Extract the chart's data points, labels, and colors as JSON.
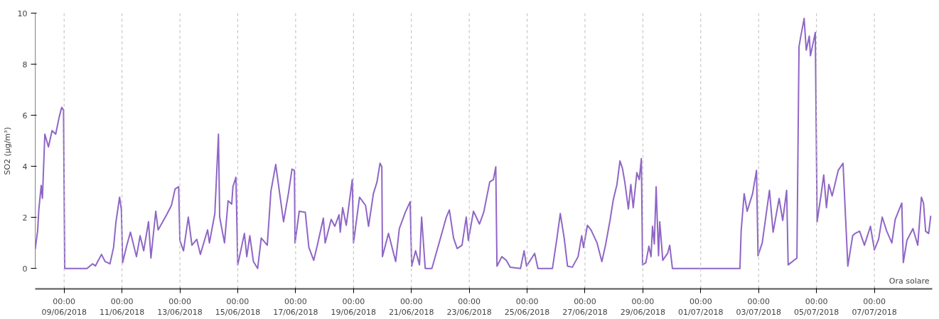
{
  "chart_data": {
    "type": "line",
    "ylabel": "SO2 (µg/m³)",
    "xlabel": "Ora solare",
    "xlim": [
      "2018-06-08",
      "2018-07-09"
    ],
    "ylim": [
      0,
      10
    ],
    "yticks": [
      0,
      2,
      4,
      6,
      8,
      10
    ],
    "xticks": [
      {
        "value": "2018-06-09",
        "label": "00:00\n09/06/2018"
      },
      {
        "value": "2018-06-11",
        "label": "00:00\n11/06/2018"
      },
      {
        "value": "2018-06-13",
        "label": "00:00\n13/06/2018"
      },
      {
        "value": "2018-06-15",
        "label": "00:00\n15/06/2018"
      },
      {
        "value": "2018-06-17",
        "label": "00:00\n17/06/2018"
      },
      {
        "value": "2018-06-19",
        "label": "00:00\n19/06/2018"
      },
      {
        "value": "2018-06-21",
        "label": "00:00\n21/06/2018"
      },
      {
        "value": "2018-06-23",
        "label": "00:00\n23/06/2018"
      },
      {
        "value": "2018-06-25",
        "label": "00:00\n25/06/2018"
      },
      {
        "value": "2018-06-27",
        "label": "00:00\n27/06/2018"
      },
      {
        "value": "2018-06-29",
        "label": "00:00\n29/06/2018"
      },
      {
        "value": "2018-07-01",
        "label": "00:00\n01/07/2018"
      },
      {
        "value": "2018-07-03",
        "label": "00:00\n03/07/2018"
      },
      {
        "value": "2018-07-05",
        "label": "00:00\n05/07/2018"
      },
      {
        "value": "2018-07-07",
        "label": "00:00\n07/07/2018"
      }
    ],
    "grid": "x",
    "marker": "none",
    "line_style": "solid",
    "series": [
      {
        "color": "#8f66c6",
        "x": [
          "2018-06-08T00:00",
          "2018-06-08T02:00",
          "2018-06-08T03:00",
          "2018-06-08T05:00",
          "2018-06-08T06:00",
          "2018-06-08T08:00",
          "2018-06-08T11:00",
          "2018-06-08T14:00",
          "2018-06-08T17:00",
          "2018-06-08T20:00",
          "2018-06-08T22:00",
          "2018-06-08T23:30",
          "2018-06-09T00:30",
          "2018-06-09T19:00",
          "2018-06-09T23:30",
          "2018-06-10T02:00",
          "2018-06-10T07:00",
          "2018-06-10T10:00",
          "2018-06-10T14:00",
          "2018-06-10T17:00",
          "2018-06-10T19:00",
          "2018-06-10T22:00",
          "2018-06-10T23:30",
          "2018-06-11T00:30",
          "2018-06-11T04:00",
          "2018-06-11T07:00",
          "2018-06-11T12:00",
          "2018-06-11T15:00",
          "2018-06-11T18:00",
          "2018-06-11T22:00",
          "2018-06-12T00:00",
          "2018-06-12T04:00",
          "2018-06-12T06:00",
          "2018-06-12T13:00",
          "2018-06-12T17:00",
          "2018-06-12T20:00",
          "2018-06-12T23:00",
          "2018-06-13T00:00",
          "2018-06-13T03:00",
          "2018-06-13T07:00",
          "2018-06-13T10:00",
          "2018-06-13T14:00",
          "2018-06-13T17:00",
          "2018-06-13T23:00",
          "2018-06-14T00:30",
          "2018-06-14T05:00",
          "2018-06-14T08:00",
          "2018-06-14T09:00",
          "2018-06-14T13:00",
          "2018-06-14T16:00",
          "2018-06-14T19:00",
          "2018-06-14T20:00",
          "2018-06-14T22:30",
          "2018-06-15T00:00",
          "2018-06-15T05:30",
          "2018-06-15T07:30",
          "2018-06-15T10:00",
          "2018-06-15T13:00",
          "2018-06-15T16:30",
          "2018-06-15T19:30",
          "2018-06-16T00:30",
          "2018-06-16T03:30",
          "2018-06-16T07:30",
          "2018-06-16T10:00",
          "2018-06-16T14:00",
          "2018-06-16T18:00",
          "2018-06-16T21:00",
          "2018-06-16T23:00",
          "2018-06-16T23:30",
          "2018-06-17T03:00",
          "2018-06-17T08:00",
          "2018-06-17T11:00",
          "2018-06-17T15:00",
          "2018-06-17T18:00",
          "2018-06-17T23:00",
          "2018-06-18T00:30",
          "2018-06-18T05:30",
          "2018-06-18T08:30",
          "2018-06-18T12:00",
          "2018-06-18T13:00",
          "2018-06-18T15:00",
          "2018-06-18T18:00",
          "2018-06-18T23:00",
          "2018-06-19T00:00",
          "2018-06-19T05:00",
          "2018-06-19T10:00",
          "2018-06-19T12:30",
          "2018-06-19T16:30",
          "2018-06-19T19:30",
          "2018-06-19T22:00",
          "2018-06-19T23:30",
          "2018-06-20T00:00",
          "2018-06-20T05:00",
          "2018-06-20T11:00",
          "2018-06-20T14:00",
          "2018-06-20T19:00",
          "2018-06-20T23:00",
          "2018-06-21T00:15",
          "2018-06-21T03:30",
          "2018-06-21T06:45",
          "2018-06-21T08:30",
          "2018-06-21T11:30",
          "2018-06-21T17:00",
          "2018-06-21T23:00",
          "2018-06-22T05:00",
          "2018-06-22T07:30",
          "2018-06-22T11:00",
          "2018-06-22T14:00",
          "2018-06-22T18:00",
          "2018-06-22T21:30",
          "2018-06-22T23:15",
          "2018-06-23T03:30",
          "2018-06-23T08:30",
          "2018-06-23T12:00",
          "2018-06-23T17:00",
          "2018-06-23T20:00",
          "2018-06-23T22:00",
          "2018-06-23T23:00",
          "2018-06-24T03:00",
          "2018-06-24T06:45",
          "2018-06-24T10:00",
          "2018-06-24T18:30",
          "2018-06-24T21:30",
          "2018-06-24T23:30",
          "2018-06-25T06:15",
          "2018-06-25T09:00",
          "2018-06-25T21:00",
          "2018-06-26T00:45",
          "2018-06-26T03:30",
          "2018-06-26T06:45",
          "2018-06-26T09:30",
          "2018-06-26T13:30",
          "2018-06-26T18:15",
          "2018-06-26T21:15",
          "2018-06-26T22:45",
          "2018-06-27T02:00",
          "2018-06-27T05:00",
          "2018-06-27T10:00",
          "2018-06-27T14:00",
          "2018-06-27T17:00",
          "2018-06-27T20:45",
          "2018-06-27T23:30",
          "2018-06-28T02:30",
          "2018-06-28T05:00",
          "2018-06-28T07:00",
          "2018-06-28T09:00",
          "2018-06-28T12:00",
          "2018-06-28T14:00",
          "2018-06-28T16:00",
          "2018-06-28T19:00",
          "2018-06-28T21:00",
          "2018-06-28T22:45",
          "2018-06-28T23:45",
          "2018-06-29T02:30",
          "2018-06-29T05:00",
          "2018-06-29T06:45",
          "2018-06-29T08:00",
          "2018-06-29T09:30",
          "2018-06-29T11:00",
          "2018-06-29T13:00",
          "2018-06-29T14:00",
          "2018-06-29T16:30",
          "2018-06-29T20:30",
          "2018-06-29T22:15",
          "2018-06-30T00:30",
          "2018-07-02T08:30",
          "2018-07-02T09:30",
          "2018-07-02T12:00",
          "2018-07-02T14:30",
          "2018-07-02T19:00",
          "2018-07-02T22:15",
          "2018-07-02T23:30",
          "2018-07-03T03:00",
          "2018-07-03T09:00",
          "2018-07-03T12:00",
          "2018-07-03T17:00",
          "2018-07-03T20:00",
          "2018-07-03T23:15",
          "2018-07-04T00:30",
          "2018-07-04T07:45",
          "2018-07-04T09:30",
          "2018-07-04T11:00",
          "2018-07-04T13:45",
          "2018-07-04T15:30",
          "2018-07-04T18:00",
          "2018-07-04T19:00",
          "2018-07-04T23:00",
          "2018-07-05T00:30",
          "2018-07-05T03:30",
          "2018-07-05T06:00",
          "2018-07-05T08:15",
          "2018-07-05T10:15",
          "2018-07-05T13:00",
          "2018-07-05T18:00",
          "2018-07-05T22:00",
          "2018-07-06T02:00",
          "2018-07-06T06:00",
          "2018-07-06T08:00",
          "2018-07-06T11:45",
          "2018-07-06T15:45",
          "2018-07-06T20:45",
          "2018-07-07T00:00",
          "2018-07-07T03:30",
          "2018-07-07T06:30",
          "2018-07-07T10:15",
          "2018-07-07T14:30",
          "2018-07-07T17:15",
          "2018-07-07T22:45",
          "2018-07-08T00:00",
          "2018-07-08T03:00",
          "2018-07-08T08:00",
          "2018-07-08T12:00",
          "2018-07-08T15:00",
          "2018-07-08T16:45",
          "2018-07-08T18:30",
          "2018-07-08T21:00",
          "2018-07-08T22:45"
        ],
        "values": [
          0.75,
          1.46,
          2.29,
          3.25,
          2.75,
          5.26,
          4.76,
          5.4,
          5.26,
          5.95,
          6.31,
          6.2,
          0,
          0,
          0.18,
          0.1,
          0.55,
          0.27,
          0.18,
          0.82,
          1.83,
          2.79,
          2.29,
          0.23,
          0.91,
          1.42,
          0.46,
          1.28,
          0.69,
          1.83,
          0.41,
          2.24,
          1.51,
          2.1,
          2.47,
          3.11,
          3.2,
          1.1,
          0.69,
          2.01,
          0.91,
          1.14,
          0.55,
          1.51,
          1.0,
          2.15,
          5.26,
          2.01,
          1.0,
          2.65,
          2.52,
          3.2,
          3.57,
          0.14,
          1.37,
          0.46,
          1.28,
          0.27,
          0,
          1.19,
          0.91,
          3.02,
          4.07,
          3.2,
          1.83,
          2.93,
          3.89,
          3.84,
          1.0,
          2.24,
          2.2,
          0.82,
          0.32,
          0.91,
          1.97,
          1.0,
          1.92,
          1.65,
          2.1,
          1.42,
          2.38,
          1.69,
          3.48,
          1.0,
          2.79,
          2.47,
          1.65,
          2.93,
          3.39,
          4.12,
          3.98,
          0.46,
          1.37,
          0.27,
          1.56,
          2.2,
          2.61,
          0.09,
          0.69,
          0.14,
          2.01,
          0,
          0,
          1.0,
          2.01,
          2.29,
          1.19,
          0.78,
          0.91,
          2.01,
          1.1,
          2.24,
          1.74,
          2.2,
          3.39,
          3.48,
          3.98,
          0.09,
          0.46,
          0.32,
          0.05,
          0,
          0.69,
          0.09,
          0.59,
          0,
          0,
          1.19,
          2.15,
          1.19,
          0.09,
          0.05,
          0.46,
          1.28,
          0.82,
          1.69,
          1.51,
          1.0,
          0.27,
          0.91,
          1.88,
          2.7,
          3.29,
          4.21,
          3.93,
          3.39,
          2.33,
          3.29,
          2.38,
          3.75,
          3.48,
          4.3,
          0.14,
          0.23,
          0.87,
          0.46,
          1.65,
          0.96,
          3.2,
          0.5,
          1.83,
          0.32,
          0.59,
          0.91,
          0,
          0,
          1.46,
          2.93,
          2.24,
          2.93,
          3.84,
          0.5,
          1.0,
          3.06,
          1.42,
          2.74,
          1.88,
          3.06,
          0.14,
          0.41,
          8.69,
          9.1,
          9.79,
          8.55,
          9.1,
          8.33,
          9.24,
          1.83,
          2.79,
          3.66,
          2.38,
          3.29,
          2.84,
          3.84,
          4.12,
          0.09,
          1.28,
          1.37,
          1.46,
          0.91,
          1.65,
          0.73,
          1.14,
          2.01,
          1.46,
          1.0,
          1.92,
          2.56,
          0.23,
          1.1,
          1.56,
          0.91,
          2.79,
          2.56,
          1.46,
          1.37,
          2.06
        ]
      }
    ]
  }
}
